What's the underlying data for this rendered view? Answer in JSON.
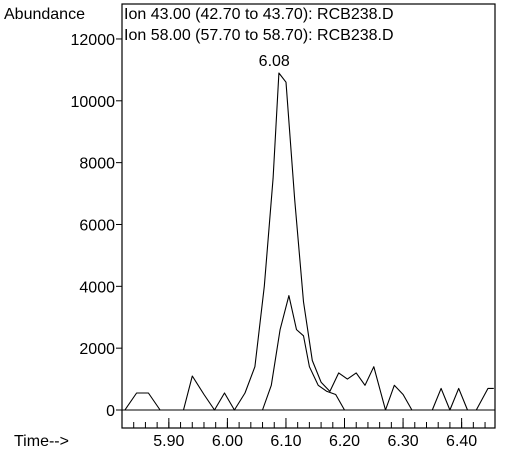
{
  "chart_data": {
    "type": "line",
    "ylabel": "Abundance",
    "xlabel": "Time-->",
    "header_lines": [
      "Ion  43.00 (42.70 to 43.70): RCB238.D",
      "Ion  58.00 (57.70 to 58.70): RCB238.D"
    ],
    "peak_annotation": {
      "text": "6.08",
      "x": 6.08
    },
    "xlim": [
      5.82,
      6.457
    ],
    "ylim": [
      0,
      12500
    ],
    "x_ticks": [
      {
        "value": 5.9,
        "label": "5.90"
      },
      {
        "value": 6.0,
        "label": "6.00"
      },
      {
        "value": 6.1,
        "label": "6.10"
      },
      {
        "value": 6.2,
        "label": "6.20"
      },
      {
        "value": 6.3,
        "label": "6.30"
      },
      {
        "value": 6.4,
        "label": "6.40"
      }
    ],
    "y_ticks": [
      {
        "value": 0,
        "label": "0"
      },
      {
        "value": 2000,
        "label": "2000"
      },
      {
        "value": 4000,
        "label": "4000"
      },
      {
        "value": 6000,
        "label": "6000"
      },
      {
        "value": 8000,
        "label": "8000"
      },
      {
        "value": 10000,
        "label": "10000"
      },
      {
        "value": 12000,
        "label": "12000"
      }
    ],
    "series": [
      {
        "name": "Ion 43.00",
        "points": [
          [
            5.825,
            0
          ],
          [
            5.845,
            550
          ],
          [
            5.865,
            550
          ],
          [
            5.885,
            0
          ],
          [
            5.905,
            0
          ],
          [
            5.925,
            0
          ],
          [
            5.94,
            1100
          ],
          [
            5.96,
            500
          ],
          [
            5.978,
            0
          ],
          [
            5.995,
            550
          ],
          [
            6.012,
            0
          ],
          [
            6.03,
            550
          ],
          [
            6.047,
            1400
          ],
          [
            6.063,
            4000
          ],
          [
            6.078,
            7500
          ],
          [
            6.088,
            10900
          ],
          [
            6.1,
            10600
          ],
          [
            6.115,
            6800
          ],
          [
            6.13,
            3500
          ],
          [
            6.145,
            1600
          ],
          [
            6.16,
            900
          ],
          [
            6.175,
            600
          ],
          [
            6.19,
            1200
          ],
          [
            6.205,
            1000
          ],
          [
            6.22,
            1200
          ],
          [
            6.235,
            800
          ],
          [
            6.25,
            1400
          ],
          [
            6.27,
            0
          ],
          [
            6.285,
            800
          ],
          [
            6.3,
            500
          ],
          [
            6.315,
            0
          ],
          [
            6.335,
            0
          ],
          [
            6.35,
            0
          ],
          [
            6.365,
            700
          ],
          [
            6.38,
            0
          ],
          [
            6.395,
            700
          ],
          [
            6.41,
            0
          ],
          [
            6.425,
            0
          ],
          [
            6.445,
            700
          ],
          [
            6.455,
            700
          ]
        ]
      },
      {
        "name": "Ion 58.00",
        "points": [
          [
            6.03,
            0
          ],
          [
            6.06,
            0
          ],
          [
            6.075,
            800
          ],
          [
            6.09,
            2600
          ],
          [
            6.105,
            3700
          ],
          [
            6.118,
            2600
          ],
          [
            6.13,
            2400
          ],
          [
            6.14,
            1400
          ],
          [
            6.155,
            800
          ],
          [
            6.17,
            600
          ],
          [
            6.185,
            500
          ],
          [
            6.2,
            0
          ],
          [
            6.215,
            0
          ]
        ]
      }
    ]
  }
}
